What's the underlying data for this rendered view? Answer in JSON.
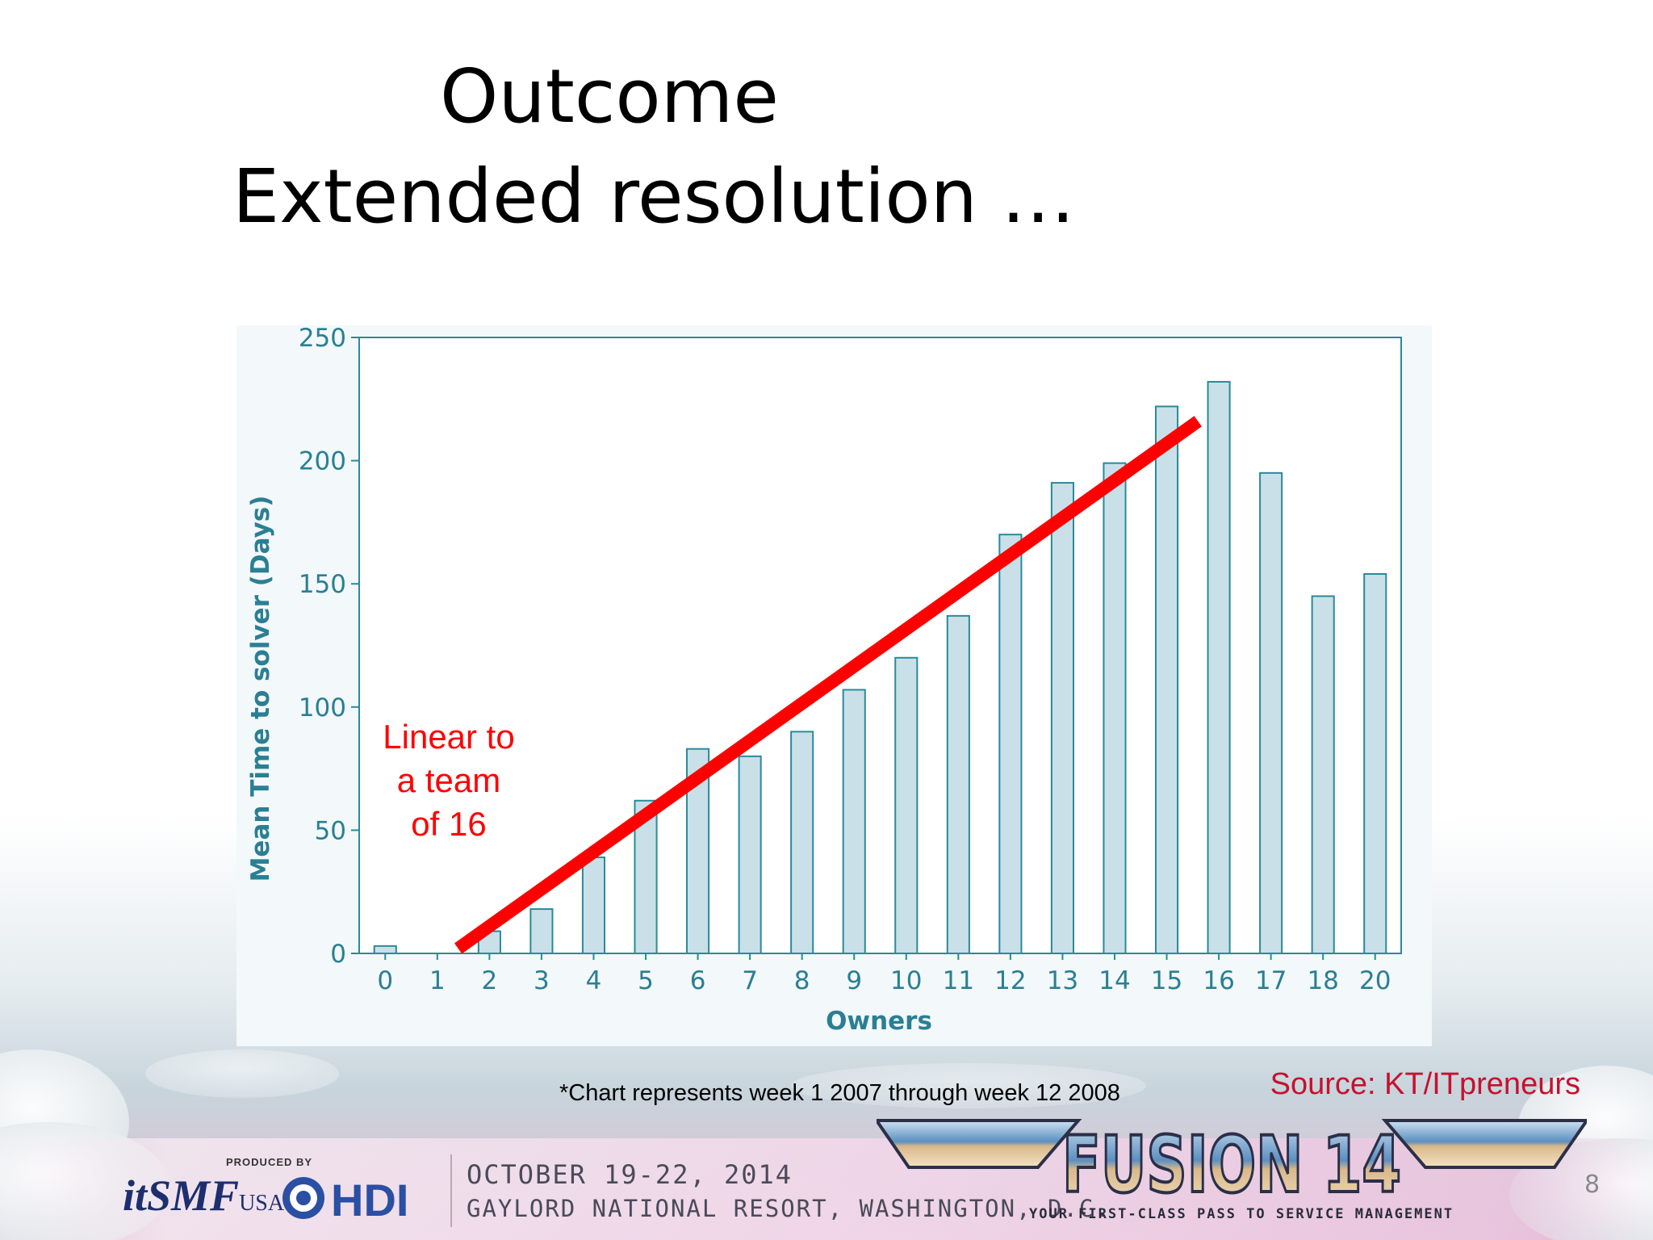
{
  "slide": {
    "title_line_1": "Outcome",
    "title_line_2": "Extended resolution …",
    "footnote": "*Chart represents week 1 2007 through week 12 2008",
    "source": "Source: KT/ITpreneurs",
    "page_number": "8"
  },
  "annotation": {
    "lines": [
      "Linear to",
      "a team",
      "of 16"
    ],
    "color": "#ff0000"
  },
  "chart_data": {
    "type": "bar",
    "categories": [
      "0",
      "1",
      "2",
      "3",
      "4",
      "5",
      "6",
      "7",
      "8",
      "9",
      "10",
      "11",
      "12",
      "13",
      "14",
      "15",
      "16",
      "17",
      "18",
      "20"
    ],
    "values": [
      3,
      0,
      9,
      18,
      39,
      62,
      83,
      80,
      90,
      107,
      120,
      137,
      170,
      191,
      199,
      222,
      232,
      195,
      145,
      154
    ],
    "xlabel": "Owners",
    "ylabel": "Mean Time to solver (Days)",
    "ylim": [
      0,
      250
    ],
    "yticks": [
      0,
      50,
      100,
      150,
      200,
      250
    ],
    "grid": false,
    "legend": "none",
    "trend_line": {
      "x": [
        1.4,
        15.6
      ],
      "y": [
        2,
        216
      ],
      "color": "#ff0000"
    },
    "colors": {
      "bar_fill": "#c9e0e9",
      "bar_stroke": "#2a8a99",
      "axis": "#2a8a99",
      "label": "#2a7f93",
      "panel": "#f3f8fa"
    }
  },
  "footer": {
    "produced_by": "PRODUCED BY",
    "itsmf_logo": "itSMF",
    "itsmf_logo_sub": "USA",
    "hdi_logo": "HDI",
    "event_dates": "OCTOBER 19-22, 2014",
    "event_venue": "GAYLORD NATIONAL RESORT, WASHINGTON, D.C.",
    "fusion_logo": "FUSION 14",
    "fusion_tagline": "YOUR FIRST-CLASS PASS TO SERVICE MANAGEMENT"
  }
}
